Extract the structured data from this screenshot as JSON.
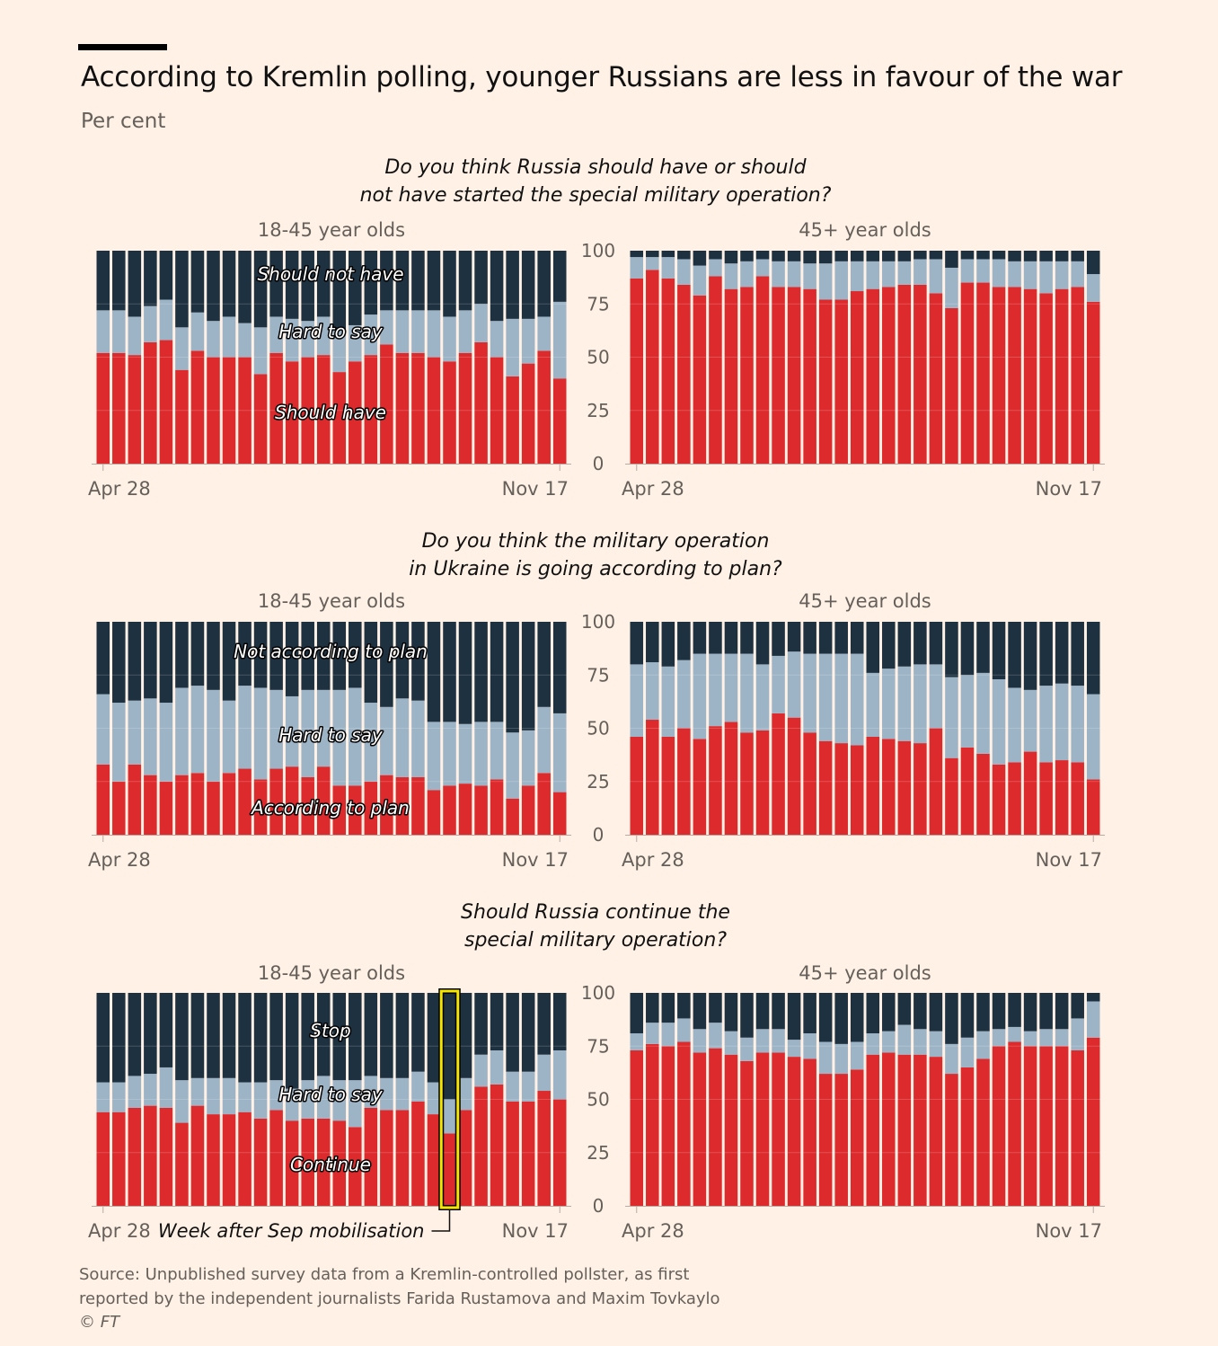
{
  "header": {
    "title": "According to Kremlin polling, younger Russians are less in favour of the war",
    "subtitle": "Per cent"
  },
  "source": {
    "line1": "Source: Unpublished survey data from a Kremlin-controlled pollster, as first",
    "line2": "reported by the independent journalists Farida Rustamova and Maxim Tovkaylo",
    "copyright": "© FT"
  },
  "colors": {
    "red": "#dd2a2c",
    "light": "#9db4c7",
    "dark": "#1e3140",
    "background": "#fff1e5",
    "highlight": "#f5e600"
  },
  "chart_data": [
    {
      "type": "bar",
      "stacked": true,
      "question": [
        "Do you think Russia should have or should",
        "not have started the special military operation?"
      ],
      "ylim": [
        0,
        100
      ],
      "yticks": [
        0,
        25,
        50,
        75,
        100
      ],
      "xtick_labels": [
        "Apr 28",
        "Nov 17"
      ],
      "segment_labels": [
        "Should have",
        "Hard to say",
        "Should not have"
      ],
      "panels": [
        {
          "title": "18-45 year olds",
          "series": [
            {
              "name": "Should have",
              "values": [
                52,
                52,
                51,
                57,
                58,
                44,
                53,
                50,
                50,
                50,
                42,
                52,
                48,
                50,
                51,
                43,
                48,
                51,
                56,
                52,
                52,
                50,
                48,
                52,
                57,
                50,
                41,
                47,
                53,
                40
              ]
            },
            {
              "name": "Hard to say",
              "values": [
                20,
                20,
                18,
                17,
                19,
                20,
                18,
                17,
                19,
                16,
                22,
                17,
                20,
                17,
                18,
                20,
                17,
                19,
                16,
                20,
                20,
                22,
                21,
                20,
                18,
                17,
                27,
                21,
                16,
                36
              ]
            },
            {
              "name": "Should not have",
              "values": [
                28,
                28,
                31,
                26,
                23,
                36,
                29,
                33,
                31,
                34,
                36,
                31,
                32,
                33,
                31,
                37,
                35,
                30,
                28,
                28,
                28,
                28,
                31,
                28,
                25,
                33,
                32,
                32,
                31,
                24
              ]
            }
          ]
        },
        {
          "title": "45+ year olds",
          "series": [
            {
              "name": "Should have",
              "values": [
                87,
                91,
                87,
                84,
                79,
                88,
                82,
                83,
                88,
                83,
                83,
                82,
                77,
                77,
                81,
                82,
                83,
                84,
                84,
                80,
                73,
                85,
                85,
                83,
                83,
                82,
                80,
                82,
                83,
                76
              ]
            },
            {
              "name": "Hard to say",
              "values": [
                10,
                6,
                10,
                12,
                14,
                8,
                12,
                12,
                8,
                12,
                12,
                12,
                17,
                18,
                14,
                13,
                12,
                11,
                12,
                16,
                19,
                11,
                11,
                13,
                12,
                13,
                15,
                13,
                12,
                13
              ]
            },
            {
              "name": "Should not have",
              "values": [
                3,
                3,
                3,
                4,
                7,
                4,
                6,
                5,
                4,
                5,
                5,
                6,
                6,
                5,
                5,
                5,
                5,
                5,
                4,
                4,
                8,
                4,
                4,
                4,
                5,
                5,
                5,
                5,
                5,
                11
              ]
            }
          ]
        }
      ]
    },
    {
      "type": "bar",
      "stacked": true,
      "question": [
        "Do you think the military operation",
        "in Ukraine is going according to plan?"
      ],
      "ylim": [
        0,
        100
      ],
      "yticks": [
        0,
        25,
        50,
        75,
        100
      ],
      "xtick_labels": [
        "Apr 28",
        "Nov 17"
      ],
      "segment_labels": [
        "According to plan",
        "Hard to say",
        "Not according to plan"
      ],
      "panels": [
        {
          "title": "18-45 year olds",
          "series": [
            {
              "name": "According to plan",
              "values": [
                33,
                25,
                33,
                28,
                25,
                28,
                29,
                25,
                29,
                31,
                26,
                31,
                32,
                27,
                32,
                23,
                23,
                25,
                28,
                27,
                27,
                21,
                23,
                24,
                23,
                26,
                17,
                23,
                29,
                20
              ]
            },
            {
              "name": "Hard to say",
              "values": [
                33,
                37,
                30,
                36,
                37,
                41,
                41,
                43,
                34,
                39,
                43,
                37,
                33,
                41,
                36,
                45,
                46,
                37,
                32,
                37,
                36,
                32,
                30,
                28,
                30,
                27,
                31,
                26,
                31,
                37
              ]
            },
            {
              "name": "Not according to plan",
              "values": [
                34,
                38,
                37,
                36,
                38,
                31,
                30,
                32,
                37,
                30,
                31,
                32,
                35,
                32,
                32,
                32,
                31,
                38,
                40,
                36,
                37,
                47,
                47,
                48,
                47,
                47,
                52,
                51,
                40,
                43
              ]
            }
          ]
        },
        {
          "title": "45+ year olds",
          "series": [
            {
              "name": "According to plan",
              "values": [
                46,
                54,
                46,
                50,
                45,
                51,
                53,
                48,
                49,
                57,
                55,
                48,
                44,
                43,
                42,
                46,
                45,
                44,
                43,
                50,
                36,
                41,
                38,
                33,
                34,
                39,
                34,
                35,
                34,
                26
              ]
            },
            {
              "name": "Hard to say",
              "values": [
                34,
                27,
                33,
                32,
                40,
                34,
                32,
                37,
                31,
                27,
                31,
                37,
                41,
                42,
                43,
                30,
                33,
                35,
                37,
                30,
                38,
                34,
                38,
                40,
                35,
                29,
                36,
                36,
                36,
                40
              ]
            },
            {
              "name": "Not according to plan",
              "values": [
                20,
                19,
                21,
                18,
                15,
                15,
                15,
                15,
                20,
                16,
                14,
                15,
                15,
                15,
                15,
                24,
                22,
                21,
                20,
                20,
                26,
                25,
                24,
                27,
                31,
                32,
                30,
                29,
                30,
                34
              ]
            }
          ]
        }
      ]
    },
    {
      "type": "bar",
      "stacked": true,
      "question": [
        "Should Russia continue the",
        "special military operation?"
      ],
      "ylim": [
        0,
        100
      ],
      "yticks": [
        0,
        25,
        50,
        75,
        100
      ],
      "xtick_labels": [
        "Apr 28",
        "Nov 17"
      ],
      "segment_labels": [
        "Continue",
        "Hard to say",
        "Stop"
      ],
      "annotation": {
        "text": "Week after Sep mobilisation",
        "panel": 0,
        "bar_index": 22
      },
      "panels": [
        {
          "title": "18-45 year olds",
          "series": [
            {
              "name": "Continue",
              "values": [
                44,
                44,
                46,
                47,
                46,
                39,
                47,
                43,
                43,
                44,
                41,
                45,
                40,
                41,
                41,
                40,
                37,
                46,
                45,
                45,
                49,
                43,
                34,
                45,
                56,
                57,
                49,
                49,
                54,
                50
              ]
            },
            {
              "name": "Hard to say",
              "values": [
                14,
                14,
                15,
                15,
                19,
                20,
                13,
                17,
                17,
                14,
                17,
                14,
                15,
                18,
                20,
                19,
                22,
                15,
                15,
                15,
                14,
                15,
                16,
                15,
                15,
                16,
                14,
                14,
                17,
                23
              ]
            },
            {
              "name": "Stop",
              "values": [
                42,
                42,
                39,
                38,
                35,
                41,
                40,
                40,
                40,
                42,
                42,
                41,
                45,
                41,
                39,
                41,
                41,
                39,
                40,
                40,
                37,
                42,
                50,
                40,
                29,
                27,
                37,
                37,
                29,
                27
              ]
            }
          ]
        },
        {
          "title": "45+ year olds",
          "series": [
            {
              "name": "Continue",
              "values": [
                73,
                76,
                75,
                77,
                72,
                74,
                71,
                68,
                72,
                72,
                70,
                69,
                62,
                62,
                64,
                71,
                72,
                71,
                71,
                70,
                62,
                65,
                69,
                75,
                77,
                75,
                75,
                75,
                73,
                79
              ]
            },
            {
              "name": "Hard to say",
              "values": [
                8,
                10,
                11,
                11,
                11,
                12,
                11,
                11,
                11,
                11,
                8,
                12,
                15,
                14,
                13,
                10,
                10,
                14,
                12,
                12,
                14,
                14,
                13,
                8,
                7,
                7,
                8,
                8,
                15,
                17
              ]
            },
            {
              "name": "Stop",
              "values": [
                19,
                14,
                14,
                12,
                17,
                14,
                18,
                21,
                17,
                17,
                22,
                19,
                23,
                24,
                23,
                19,
                18,
                15,
                17,
                18,
                24,
                21,
                18,
                17,
                16,
                18,
                17,
                17,
                12,
                4
              ]
            }
          ]
        }
      ]
    }
  ]
}
